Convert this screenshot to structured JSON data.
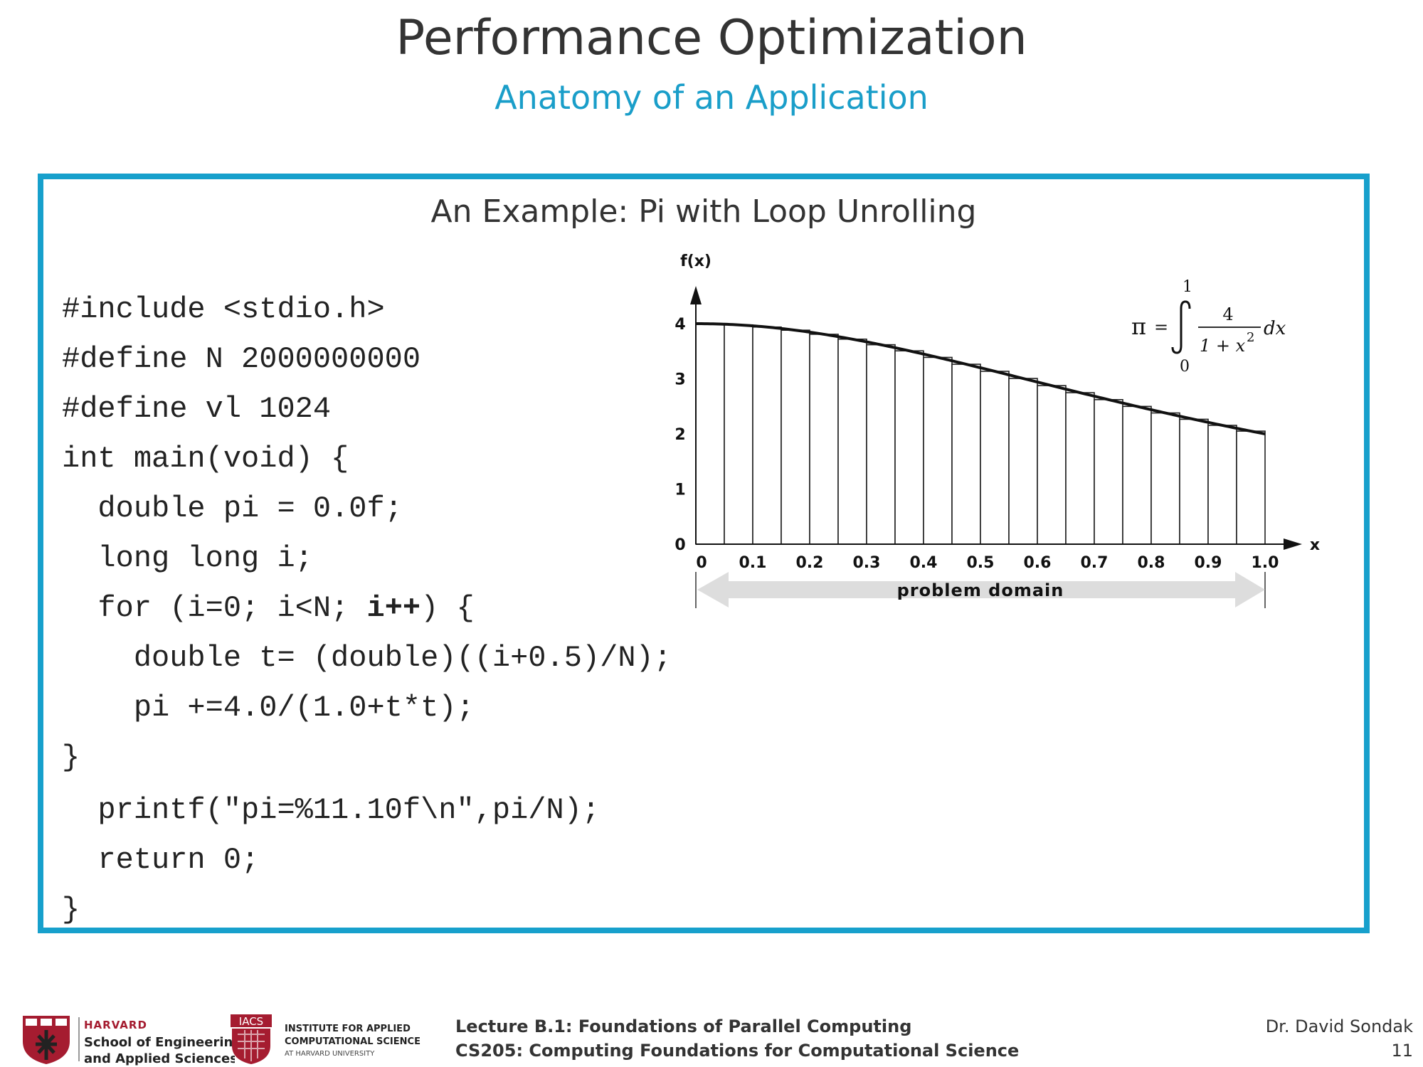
{
  "header": {
    "title": "Performance Optimization",
    "subtitle": "Anatomy of an Application"
  },
  "example": {
    "title": "An Example: Pi with Loop Unrolling",
    "code_lines": [
      {
        "text": "#include <stdio.h>"
      },
      {
        "text": "#define N 2000000000"
      },
      {
        "text": "#define vl 1024"
      },
      {
        "text": "int main(void) {"
      },
      {
        "text": "  double pi = 0.0f;"
      },
      {
        "text": "  long long i;"
      },
      {
        "pre": "  for (i=0; i<N; ",
        "bold": "i++",
        "post": ") {"
      },
      {
        "text": "    double t= (double)((i+0.5)/N);"
      },
      {
        "text": "    pi +=4.0/(1.0+t*t);"
      },
      {
        "text": "}"
      },
      {
        "text": "  printf(\"pi=%11.10f\\n\",pi/N);"
      },
      {
        "text": "  return 0;"
      },
      {
        "text": "}"
      }
    ]
  },
  "chart_data": {
    "type": "bar",
    "ylabel": "f(x)",
    "xlabel": "x",
    "xlim": [
      0,
      1
    ],
    "ylim": [
      0,
      4
    ],
    "x_ticks": [
      "0",
      "0.1",
      "0.2",
      "0.3",
      "0.4",
      "0.5",
      "0.6",
      "0.7",
      "0.8",
      "0.9",
      "1.0"
    ],
    "y_ticks": [
      "0",
      "1",
      "2",
      "3",
      "4"
    ],
    "bar_count": 20,
    "curve": "4/(1+x^2)",
    "domain_label": "problem domain",
    "formula": {
      "lhs": "π",
      "eq": "=",
      "upper": "1",
      "lower": "0",
      "num": "4",
      "den": "1 + x",
      "exp": "2",
      "dx": "dx"
    }
  },
  "footer": {
    "harvard_top": "HARVARD",
    "harvard_line1": "School of Engineering",
    "harvard_line2": "and Applied Sciences",
    "iacs_abbr": "IACS",
    "iacs_line1": "INSTITUTE FOR APPLIED",
    "iacs_line2": "COMPUTATIONAL SCIENCE",
    "iacs_line3": "AT HARVARD UNIVERSITY",
    "lecture": "Lecture B.1: Foundations of Parallel Computing",
    "course": "CS205: Computing Foundations for Computational Science",
    "author": "Dr. David Sondak",
    "page": "11"
  }
}
